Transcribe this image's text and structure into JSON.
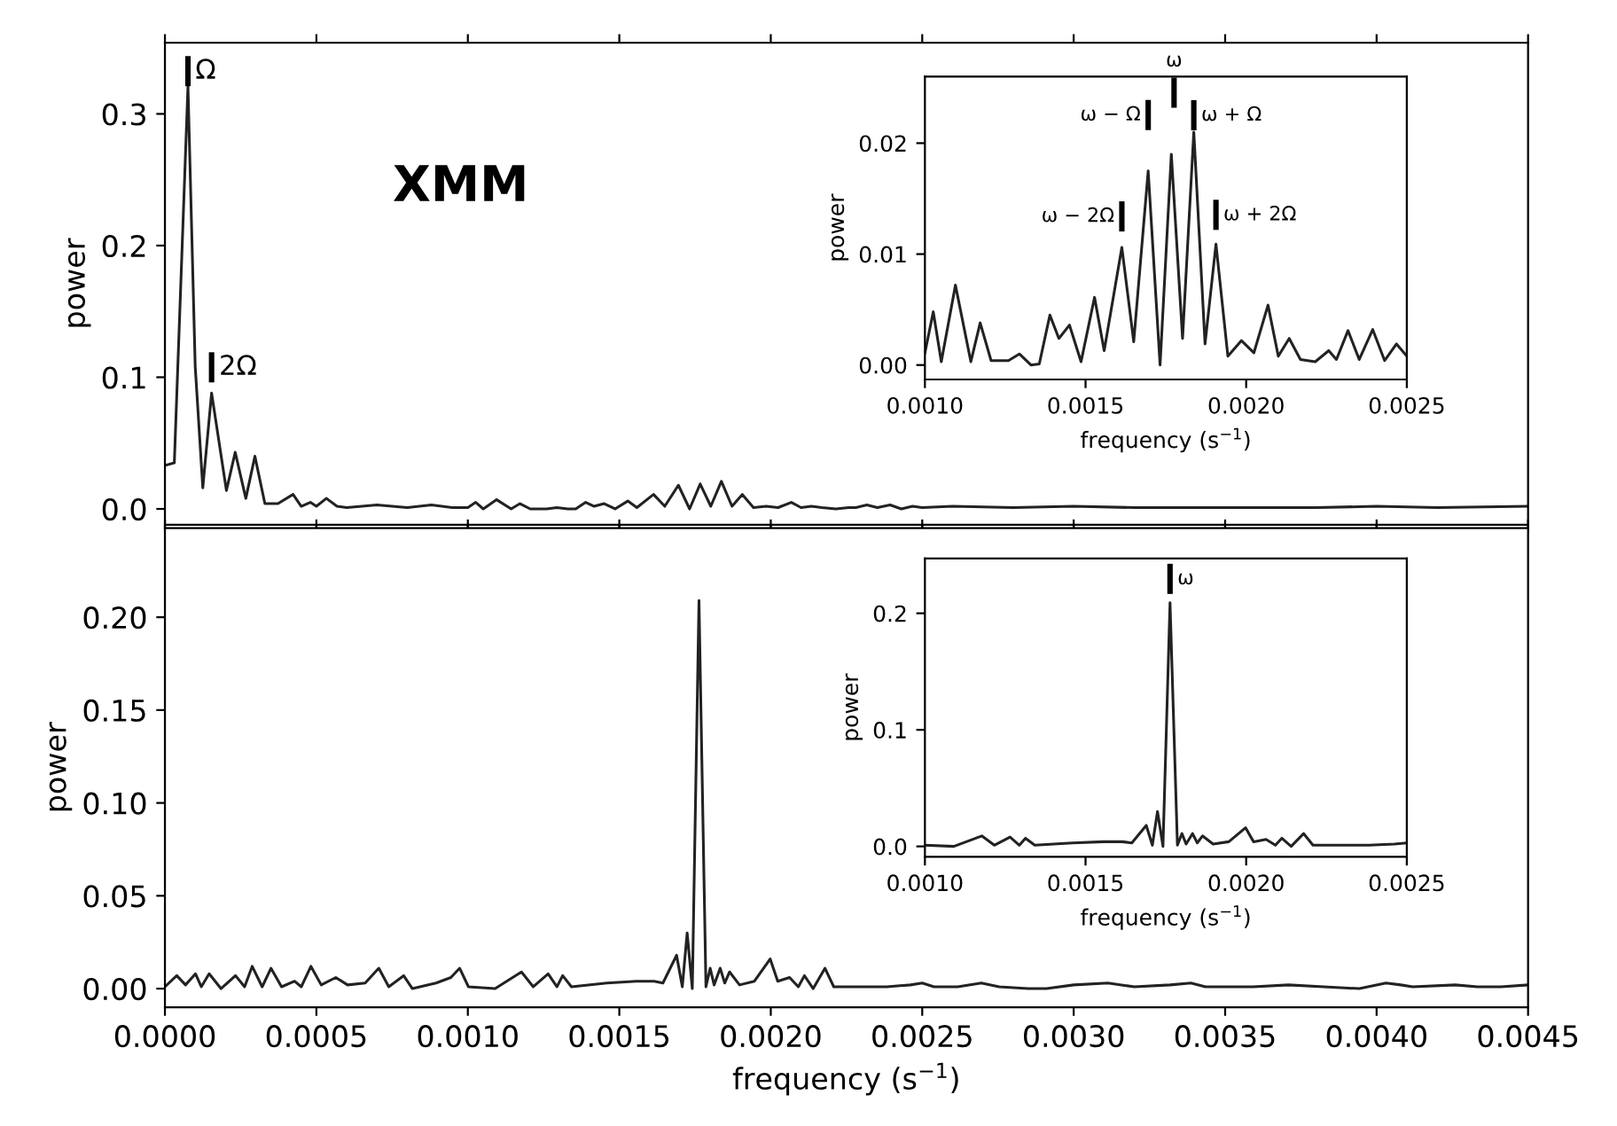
{
  "chart_data": [
    {
      "type": "line",
      "xlim": [
        0,
        0.0045
      ],
      "ylim": [
        -0.012,
        0.354
      ],
      "ylabel": "power",
      "tick_labels": "y",
      "xticks": [
        {
          "value": 0,
          "label": null
        },
        {
          "value": 0.0005,
          "label": null
        },
        {
          "value": 0.001,
          "label": null
        },
        {
          "value": 0.0015,
          "label": null
        },
        {
          "value": 0.002,
          "label": null
        },
        {
          "value": 0.0025,
          "label": null
        },
        {
          "value": 0.003,
          "label": null
        },
        {
          "value": 0.0035,
          "label": null
        },
        {
          "value": 0.004,
          "label": null
        },
        {
          "value": 0.0045,
          "label": null
        }
      ],
      "yticks": [
        {
          "value": 0,
          "label": "0.0"
        },
        0.1,
        0.2,
        0.3
      ],
      "annotations": [
        "XMM",
        {
          "text": "Ω",
          "x": 7.6e-05,
          "y": 0.321
        },
        {
          "text": "2Ω",
          "x": 0.000154,
          "y": 0.088
        }
      ],
      "series": [
        {
          "color": "#222222",
          "x": [
            0,
            3.1e-05,
            5.1e-05,
            7.6e-05,
            0.0001,
            0.000125,
            0.000154,
            0.000203,
            0.000232,
            0.000267,
            0.000297,
            0.00033,
            0.000373,
            0.000423,
            0.00045,
            0.00048,
            0.0005,
            0.000533,
            0.000568,
            0.0006,
            0.0007,
            0.0008,
            0.00088,
            0.00095,
            0.001,
            0.001026,
            0.001051,
            0.001095,
            0.001143,
            0.001172,
            0.001206,
            0.00126,
            0.001294,
            0.00133,
            0.001356,
            0.001389,
            0.001417,
            0.00145,
            0.001486,
            0.001528,
            0.001558,
            0.001613,
            0.00165,
            0.001695,
            0.001732,
            0.001767,
            0.001802,
            0.001837,
            0.001872,
            0.001906,
            0.001943,
            0.001985,
            0.002024,
            0.002068,
            0.0021,
            0.002134,
            0.002169,
            0.002215,
            0.002257,
            0.002281,
            0.002317,
            0.002352,
            0.002394,
            0.002431,
            0.002468,
            0.0025,
            0.0026,
            0.0028,
            0.003,
            0.0032,
            0.0035,
            0.0038,
            0.004,
            0.0042,
            0.0045
          ],
          "values": [
            0.033,
            0.035,
            0.162,
            0.321,
            0.108,
            0.016,
            0.088,
            0.014,
            0.043,
            0.008,
            0.04,
            0.004,
            0.004,
            0.011,
            0.002,
            0.005,
            0.002,
            0.008,
            0.002,
            0.001,
            0.003,
            0.001,
            0.003,
            0.001,
            0.001,
            0.005,
            0.0,
            0.007,
            0.0,
            0.004,
            0.0,
            0.0,
            0.001,
            0.0,
            0.0,
            0.005,
            0.002,
            0.004,
            0.0,
            0.006,
            0.001,
            0.011,
            0.002,
            0.018,
            0.0,
            0.019,
            0.002,
            0.021,
            0.002,
            0.011,
            0.001,
            0.002,
            0.001,
            0.005,
            0.001,
            0.002,
            0.001,
            0.0,
            0.001,
            0.001,
            0.003,
            0.001,
            0.003,
            0.0,
            0.002,
            0.001,
            0.002,
            0.001,
            0.002,
            0.001,
            0.001,
            0.001,
            0.002,
            0.001,
            0.002
          ]
        }
      ]
    },
    {
      "type": "line",
      "xlim": [
        0.001,
        0.0025
      ],
      "ylim": [
        -0.0013,
        0.026
      ],
      "xlabel": "frequency (s$^{−1}$)",
      "ylabel": "power",
      "xticks": [
        {
          "value": 0.001,
          "label": "0.0010"
        },
        {
          "value": 0.0015,
          "label": "0.0015"
        },
        {
          "value": 0.002,
          "label": "0.0020"
        },
        {
          "value": 0.0025,
          "label": "0.0025"
        }
      ],
      "yticks": [
        {
          "value": 0,
          "label": "0.00"
        },
        {
          "value": 0.01,
          "label": "0.01"
        },
        {
          "value": 0.02,
          "label": "0.02"
        }
      ],
      "annotations": [
        "ω",
        {
          "text": "ω − Ω",
          "x": 0.001695,
          "y": 0.0175
        },
        {
          "text": "ω + Ω",
          "x": 0.001837,
          "y": 0.021
        },
        {
          "text": "ω − 2Ω",
          "x": 0.001613,
          "y": 0.0106
        },
        {
          "text": "ω + 2Ω",
          "x": 0.001906,
          "y": 0.0109
        }
      ],
      "series": [
        {
          "color": "#222222",
          "x": [
            0.001,
            0.001026,
            0.001051,
            0.001095,
            0.001143,
            0.001172,
            0.001206,
            0.00126,
            0.001294,
            0.00133,
            0.001356,
            0.001389,
            0.001417,
            0.00145,
            0.001486,
            0.001528,
            0.001558,
            0.001613,
            0.00165,
            0.001695,
            0.001732,
            0.001767,
            0.001802,
            0.001837,
            0.001872,
            0.001906,
            0.001943,
            0.001985,
            0.002024,
            0.002068,
            0.0021,
            0.002134,
            0.002169,
            0.002215,
            0.002257,
            0.002281,
            0.002317,
            0.002352,
            0.002394,
            0.002431,
            0.002468,
            0.0025
          ],
          "values": [
            0.0011,
            0.0048,
            0.0003,
            0.0072,
            0.0003,
            0.0038,
            0.0004,
            0.0004,
            0.001,
            0.0,
            0.0001,
            0.0045,
            0.0024,
            0.0036,
            0.0003,
            0.0061,
            0.0013,
            0.0106,
            0.0021,
            0.0175,
            0.0,
            0.019,
            0.0024,
            0.021,
            0.0019,
            0.0109,
            0.0008,
            0.0022,
            0.0011,
            0.0054,
            0.0008,
            0.0024,
            0.0005,
            0.0003,
            0.0013,
            0.0005,
            0.0031,
            0.0005,
            0.0032,
            0.0004,
            0.0019,
            0.0008
          ]
        }
      ]
    },
    {
      "type": "line",
      "xlim": [
        0,
        0.0045
      ],
      "ylim": [
        -0.01,
        0.248
      ],
      "xlabel": "frequency (s$^{−1}$)",
      "ylabel": "power",
      "xticks": [
        {
          "value": 0,
          "label": "0.0000"
        },
        {
          "value": 0.0005,
          "label": "0.0005"
        },
        {
          "value": 0.001,
          "label": "0.0010"
        },
        {
          "value": 0.0015,
          "label": "0.0015"
        },
        {
          "value": 0.002,
          "label": "0.0020"
        },
        {
          "value": 0.0025,
          "label": "0.0025"
        },
        {
          "value": 0.003,
          "label": "0.0030"
        },
        {
          "value": 0.0035,
          "label": "0.0035"
        },
        {
          "value": 0.004,
          "label": "0.0040"
        },
        {
          "value": 0.0045,
          "label": "0.0045"
        }
      ],
      "yticks": [
        {
          "value": 0,
          "label": "0.00"
        },
        {
          "value": 0.05,
          "label": "0.05"
        },
        {
          "value": 0.1,
          "label": "0.10"
        },
        {
          "value": 0.15,
          "label": "0.15"
        },
        {
          "value": 0.2,
          "label": "0.20"
        }
      ],
      "series": [
        {
          "color": "#222222",
          "x": [
            0,
            3.9e-05,
            6.8e-05,
            0.000101,
            0.00012,
            0.000146,
            0.000185,
            0.000233,
            0.000263,
            0.000288,
            0.000321,
            0.00035,
            0.000385,
            0.000428,
            0.00045,
            0.000482,
            0.000516,
            0.000564,
            0.000603,
            0.000661,
            0.000706,
            0.000739,
            0.000788,
            0.000817,
            0.000895,
            0.000944,
            0.000973,
            0.001002,
            0.00109,
            0.001177,
            0.001216,
            0.001265,
            0.001294,
            0.001313,
            0.001342,
            0.001459,
            0.001556,
            0.001615,
            0.001644,
            0.001689,
            0.001708,
            0.001724,
            0.001741,
            0.001763,
            0.001786,
            0.0018,
            0.001813,
            0.001833,
            0.001848,
            0.001864,
            0.001897,
            0.001946,
            0.001998,
            0.002023,
            0.002062,
            0.002091,
            0.002111,
            0.00214,
            0.002179,
            0.002208,
            0.002315,
            0.002383,
            0.002461,
            0.0025,
            0.002539,
            0.002617,
            0.002695,
            0.002754,
            0.00285,
            0.00291,
            0.003,
            0.003113,
            0.0032,
            0.003318,
            0.003387,
            0.003435,
            0.003592,
            0.003709,
            0.003826,
            0.003943,
            0.004031,
            0.00408,
            0.004119,
            0.00426,
            0.004333,
            0.00441,
            0.0045
          ],
          "values": [
            0.001,
            0.007,
            0.002,
            0.008,
            0.001,
            0.008,
            0.0,
            0.007,
            0.001,
            0.012,
            0.001,
            0.011,
            0.001,
            0.004,
            0.001,
            0.012,
            0.002,
            0.006,
            0.002,
            0.003,
            0.011,
            0.001,
            0.007,
            0.0,
            0.003,
            0.006,
            0.011,
            0.001,
            0.0,
            0.009,
            0.001,
            0.008,
            0.001,
            0.007,
            0.001,
            0.003,
            0.004,
            0.004,
            0.003,
            0.018,
            0.001,
            0.03,
            0.0,
            0.209,
            0.001,
            0.011,
            0.002,
            0.011,
            0.003,
            0.009,
            0.002,
            0.004,
            0.016,
            0.004,
            0.006,
            0.001,
            0.007,
            0.0,
            0.011,
            0.001,
            0.001,
            0.001,
            0.002,
            0.003,
            0.001,
            0.001,
            0.003,
            0.001,
            0.0,
            0.0,
            0.002,
            0.003,
            0.001,
            0.002,
            0.003,
            0.001,
            0.001,
            0.002,
            0.001,
            0.0,
            0.003,
            0.002,
            0.001,
            0.002,
            0.001,
            0.001,
            0.002
          ]
        }
      ]
    },
    {
      "type": "line",
      "xlim": [
        0.001,
        0.0025
      ],
      "ylim": [
        -0.009,
        0.247
      ],
      "xlabel": "frequency (s$^{−1}$)",
      "ylabel": "power",
      "xticks": [
        {
          "value": 0.001,
          "label": "0.0010"
        },
        {
          "value": 0.0015,
          "label": "0.0015"
        },
        {
          "value": 0.002,
          "label": "0.0020"
        },
        {
          "value": 0.0025,
          "label": "0.0025"
        }
      ],
      "yticks": [
        {
          "value": 0,
          "label": "0.0"
        },
        0.1,
        0.2
      ],
      "annotations": [
        {
          "text": "ω",
          "x": 0.001763,
          "y": 0.209
        }
      ],
      "series": [
        {
          "color": "#222222",
          "x": [
            0.001,
            0.00109,
            0.001177,
            0.001216,
            0.001265,
            0.001294,
            0.001313,
            0.001342,
            0.001459,
            0.001556,
            0.001615,
            0.001644,
            0.001689,
            0.001708,
            0.001724,
            0.001741,
            0.001763,
            0.001786,
            0.0018,
            0.001813,
            0.001833,
            0.001848,
            0.001864,
            0.001897,
            0.001946,
            0.001998,
            0.002023,
            0.002062,
            0.002091,
            0.002111,
            0.00214,
            0.002179,
            0.002208,
            0.002315,
            0.002383,
            0.002461,
            0.0025
          ],
          "values": [
            0.001,
            0.0,
            0.009,
            0.001,
            0.008,
            0.001,
            0.007,
            0.001,
            0.003,
            0.004,
            0.004,
            0.003,
            0.018,
            0.001,
            0.03,
            0.0,
            0.209,
            0.001,
            0.011,
            0.002,
            0.011,
            0.003,
            0.009,
            0.002,
            0.004,
            0.016,
            0.004,
            0.006,
            0.001,
            0.007,
            0.0,
            0.011,
            0.001,
            0.001,
            0.001,
            0.002,
            0.003
          ]
        }
      ]
    }
  ]
}
